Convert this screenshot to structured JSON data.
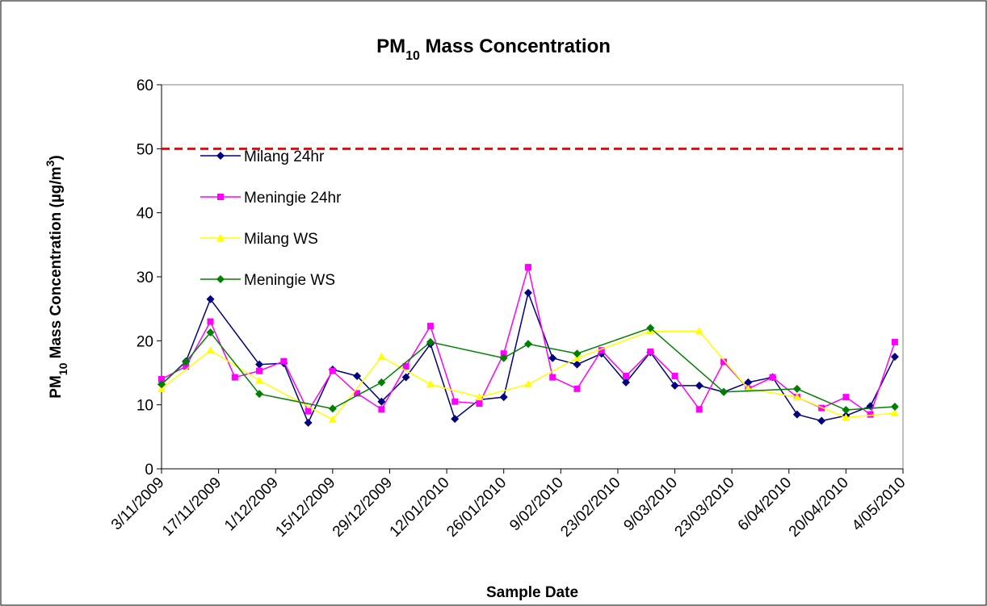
{
  "chart_data": {
    "type": "line",
    "title": [
      "PM",
      "10",
      " Mass Concentration"
    ],
    "x_label": "Sample Date",
    "y_label": [
      "PM",
      "10",
      " Mass Concentration (µg/m",
      "3",
      ")"
    ],
    "xlim": [
      "2009-11-03",
      "2010-05-04"
    ],
    "xticks": [
      {
        "value": "2009-11-03",
        "label": "3/11/2009"
      },
      {
        "value": "2009-11-17",
        "label": "17/11/2009"
      },
      {
        "value": "2009-12-01",
        "label": "1/12/2009"
      },
      {
        "value": "2009-12-15",
        "label": "15/12/2009"
      },
      {
        "value": "2009-12-29",
        "label": "29/12/2009"
      },
      {
        "value": "2010-01-12",
        "label": "12/01/2010"
      },
      {
        "value": "2010-01-26",
        "label": "26/01/2010"
      },
      {
        "value": "2010-02-09",
        "label": "9/02/2010"
      },
      {
        "value": "2010-02-23",
        "label": "23/02/2010"
      },
      {
        "value": "2010-03-09",
        "label": "9/03/2010"
      },
      {
        "value": "2010-03-23",
        "label": "23/03/2010"
      },
      {
        "value": "2010-04-06",
        "label": "6/04/2010"
      },
      {
        "value": "2010-04-20",
        "label": "20/04/2010"
      },
      {
        "value": "2010-05-04",
        "label": "4/05/2010"
      }
    ],
    "ylim": [
      0,
      60
    ],
    "yticks": [
      0,
      10,
      20,
      30,
      40,
      50,
      60
    ],
    "grid": false,
    "reference_line": {
      "value": 50,
      "color": "#ff0000"
    },
    "legend": "upper left",
    "series": [
      {
        "name": "Milang 24hr",
        "color": "#000080",
        "marker": "diamond",
        "x": [
          "2009-11-03",
          "2009-11-09",
          "2009-11-15",
          "2009-11-27",
          "2009-12-03",
          "2009-12-09",
          "2009-12-15",
          "2009-12-21",
          "2009-12-27",
          "2010-01-02",
          "2010-01-08",
          "2010-01-14",
          "2010-01-20",
          "2010-01-26",
          "2010-02-01",
          "2010-02-07",
          "2010-02-13",
          "2010-02-19",
          "2010-02-25",
          "2010-03-03",
          "2010-03-09",
          "2010-03-15",
          "2010-03-21",
          "2010-03-27",
          "2010-04-02",
          "2010-04-08",
          "2010-04-14",
          "2010-04-20",
          "2010-04-26",
          "2010-05-02"
        ],
        "values": [
          13.2,
          16.8,
          26.5,
          16.3,
          16.5,
          7.2,
          15.5,
          14.5,
          10.5,
          14.3,
          19.5,
          7.8,
          10.8,
          11.2,
          27.5,
          17.3,
          16.3,
          18.0,
          13.5,
          18.2,
          13.0,
          13.0,
          12.0,
          13.5,
          14.3,
          8.5,
          7.5,
          8.3,
          9.8,
          17.5
        ]
      },
      {
        "name": "Meningie 24hr",
        "color": "#ff00ff",
        "marker": "square",
        "x": [
          "2009-11-03",
          "2009-11-09",
          "2009-11-15",
          "2009-11-21",
          "2009-11-27",
          "2009-12-03",
          "2009-12-09",
          "2009-12-15",
          "2009-12-21",
          "2009-12-27",
          "2010-01-02",
          "2010-01-08",
          "2010-01-14",
          "2010-01-20",
          "2010-01-26",
          "2010-02-01",
          "2010-02-07",
          "2010-02-13",
          "2010-02-19",
          "2010-02-25",
          "2010-03-03",
          "2010-03-09",
          "2010-03-15",
          "2010-03-21",
          "2010-03-27",
          "2010-04-02",
          "2010-04-08",
          "2010-04-14",
          "2010-04-20",
          "2010-04-26",
          "2010-05-02"
        ],
        "values": [
          14.0,
          16.0,
          23.0,
          14.3,
          15.3,
          16.8,
          9.0,
          15.3,
          11.8,
          9.3,
          16.0,
          22.3,
          10.5,
          10.2,
          18.0,
          31.5,
          14.3,
          12.5,
          18.5,
          14.5,
          18.3,
          14.5,
          9.3,
          16.7,
          12.5,
          14.3,
          11.2,
          9.5,
          11.2,
          8.5,
          19.8
        ]
      },
      {
        "name": "Milang WS",
        "color": "#ffff00",
        "marker": "triangle",
        "x": [
          "2009-11-03",
          "2009-11-15",
          "2009-11-27",
          "2009-12-15",
          "2009-12-27",
          "2010-01-08",
          "2010-01-20",
          "2010-02-01",
          "2010-02-13",
          "2010-03-03",
          "2010-03-15",
          "2010-03-27",
          "2010-04-08",
          "2010-04-20",
          "2010-05-02"
        ],
        "values": [
          12.5,
          18.5,
          13.8,
          7.7,
          17.5,
          13.2,
          11.2,
          13.2,
          17.3,
          21.5,
          21.5,
          12.5,
          11.2,
          8.0,
          8.7
        ]
      },
      {
        "name": "Meningie WS",
        "color": "#008000",
        "marker": "diamond",
        "x": [
          "2009-11-03",
          "2009-11-09",
          "2009-11-15",
          "2009-11-27",
          "2009-12-15",
          "2009-12-27",
          "2010-01-08",
          "2010-01-26",
          "2010-02-01",
          "2010-02-13",
          "2010-03-03",
          "2010-03-21",
          "2010-04-08",
          "2010-04-20",
          "2010-05-02"
        ],
        "values": [
          13.2,
          16.7,
          21.3,
          11.7,
          9.4,
          13.5,
          19.8,
          17.3,
          19.5,
          18.0,
          22.0,
          12.0,
          12.5,
          9.2,
          9.7
        ]
      }
    ]
  }
}
